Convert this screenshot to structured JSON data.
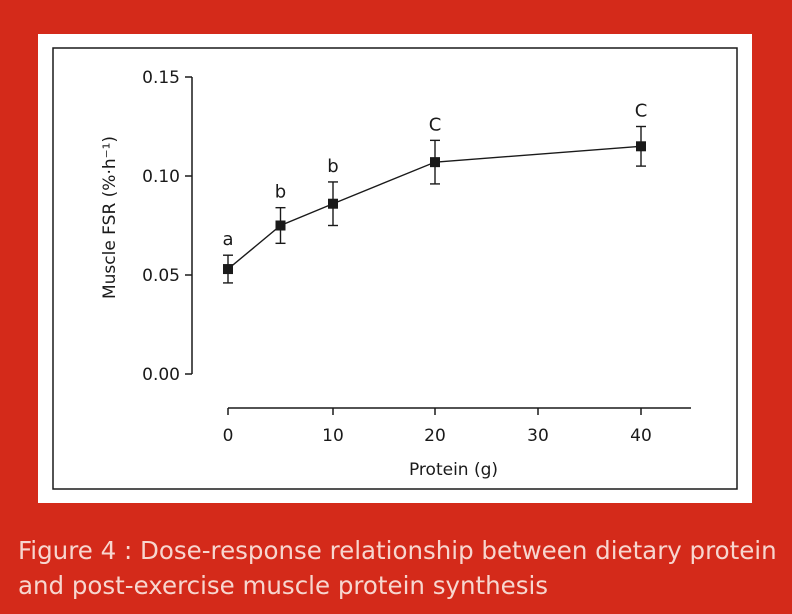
{
  "colors": {
    "background": "#d42a1a",
    "panel": "#ffffff",
    "ink": "#1a1a1a",
    "caption": "#f7d6cf"
  },
  "caption": {
    "line1": "Figure 4 : Dose-response relationship between dietary protein",
    "line2": "and post-exercise muscle protein synthesis"
  },
  "chart_data": {
    "type": "line",
    "xlabel": "Protein (g)",
    "ylabel": "Muscle FSR (%·h⁻¹)",
    "ylim": [
      0,
      0.15
    ],
    "y_ticks": [
      0.0,
      0.05,
      0.1,
      0.15
    ],
    "y_tick_labels": [
      "0.00",
      "0.05",
      "0.10",
      "0.15"
    ],
    "x_ticks": [
      0,
      10,
      20,
      30,
      40
    ],
    "x_tick_labels": [
      "0",
      "10",
      "20",
      "30",
      "40"
    ],
    "x_axis_note": "axis position 30 sits midway; 40 g is plotted at the final tick",
    "grid": false,
    "series": [
      {
        "x": [
          0,
          5,
          10,
          20,
          40
        ],
        "values": [
          0.053,
          0.075,
          0.086,
          0.107,
          0.115
        ],
        "errors": [
          0.007,
          0.009,
          0.011,
          0.011,
          0.01
        ],
        "annotations": [
          "a",
          "b",
          "b",
          "C",
          "C"
        ],
        "marker": "square"
      }
    ]
  }
}
